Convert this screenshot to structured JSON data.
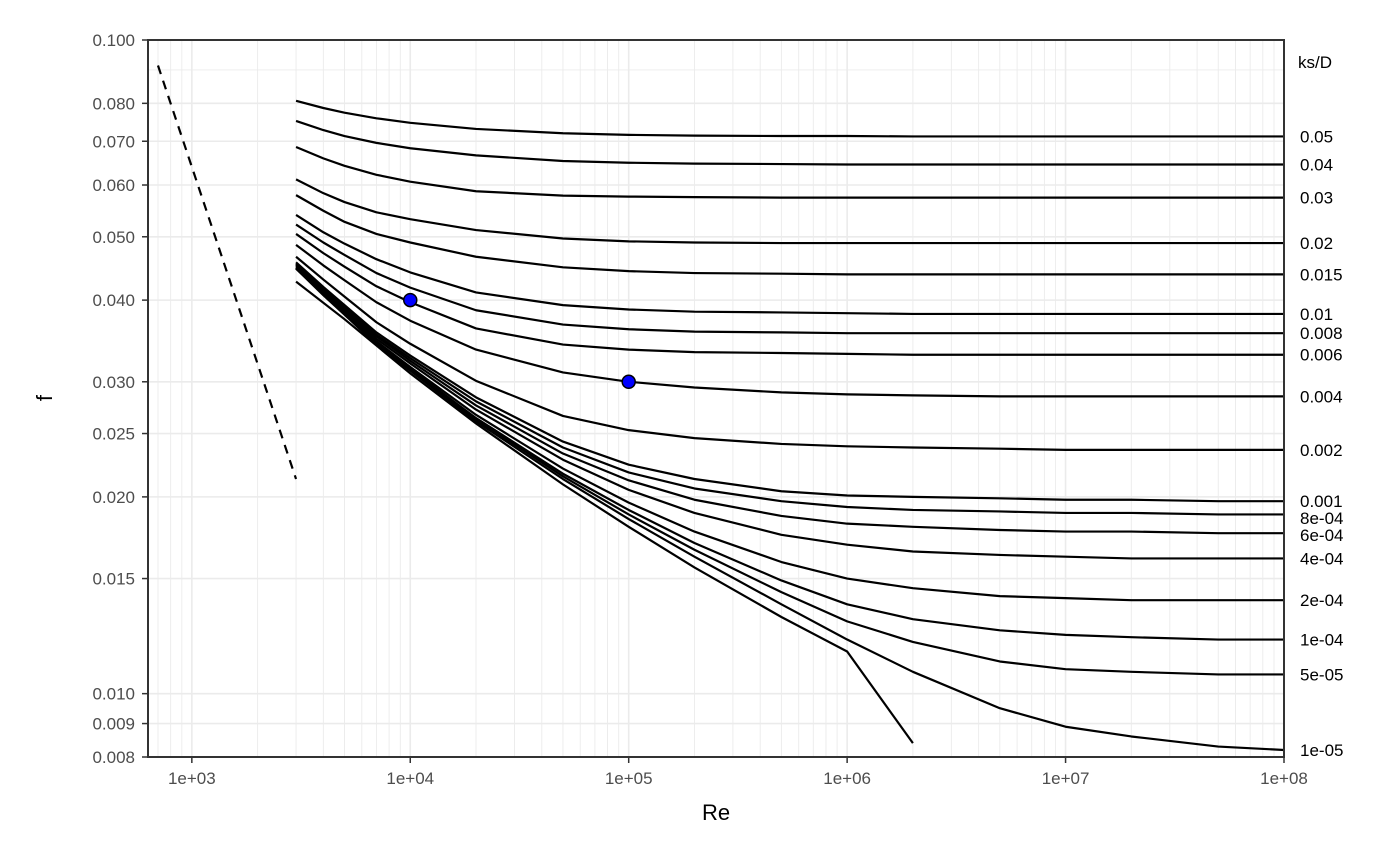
{
  "chart_data": {
    "type": "line",
    "title": "",
    "xlabel": "Re",
    "ylabel": "f",
    "x_scale": "log",
    "y_scale": "log",
    "xlim": [
      630,
      100000000
    ],
    "ylim": [
      0.008,
      0.1
    ],
    "grid": true,
    "x_ticks": [
      {
        "value": 1000,
        "label": "1e+03"
      },
      {
        "value": 10000,
        "label": "1e+04"
      },
      {
        "value": 100000,
        "label": "1e+05"
      },
      {
        "value": 1000000,
        "label": "1e+06"
      },
      {
        "value": 10000000,
        "label": "1e+07"
      },
      {
        "value": 100000000,
        "label": "1e+08"
      }
    ],
    "y_ticks": [
      {
        "value": 0.008,
        "label": "0.008"
      },
      {
        "value": 0.009,
        "label": "0.009"
      },
      {
        "value": 0.01,
        "label": "0.010"
      },
      {
        "value": 0.015,
        "label": "0.015"
      },
      {
        "value": 0.02,
        "label": "0.020"
      },
      {
        "value": 0.025,
        "label": "0.025"
      },
      {
        "value": 0.03,
        "label": "0.030"
      },
      {
        "value": 0.04,
        "label": "0.040"
      },
      {
        "value": 0.05,
        "label": "0.050"
      },
      {
        "value": 0.06,
        "label": "0.060"
      },
      {
        "value": 0.07,
        "label": "0.070"
      },
      {
        "value": 0.08,
        "label": "0.080"
      },
      {
        "value": 0.1,
        "label": "0.100"
      }
    ],
    "laminar": {
      "style": "dashed",
      "x": [
        700,
        3000
      ],
      "y": [
        0.0914,
        0.0213
      ]
    },
    "curves_label_title": "ks/D",
    "curves_x": [
      3000,
      4000,
      5000,
      7000,
      10000,
      20000,
      50000,
      100000,
      200000,
      500000,
      1000000,
      2000000,
      5000000,
      10000000,
      20000000,
      50000000,
      100000000
    ],
    "curves": [
      {
        "label": "0.05",
        "y": [
          0.0807,
          0.0787,
          0.0774,
          0.0759,
          0.0747,
          0.0731,
          0.072,
          0.0716,
          0.0714,
          0.0713,
          0.0713,
          0.0712,
          0.0712,
          0.0712,
          0.0712,
          0.0712,
          0.0712
        ]
      },
      {
        "label": "0.04",
        "y": [
          0.0752,
          0.0728,
          0.0713,
          0.0696,
          0.0683,
          0.0666,
          0.0653,
          0.0649,
          0.0647,
          0.0646,
          0.0645,
          0.0645,
          0.0645,
          0.0645,
          0.0645,
          0.0645,
          0.0645
        ]
      },
      {
        "label": "0.03",
        "y": [
          0.0686,
          0.0659,
          0.0642,
          0.0622,
          0.0607,
          0.0587,
          0.0578,
          0.0576,
          0.0575,
          0.0574,
          0.0574,
          0.0574,
          0.0574,
          0.0574,
          0.0574,
          0.0574,
          0.0574
        ]
      },
      {
        "label": "0.02",
        "y": [
          0.0612,
          0.0583,
          0.0565,
          0.0545,
          0.0532,
          0.0512,
          0.0497,
          0.0492,
          0.049,
          0.0489,
          0.0489,
          0.0489,
          0.0489,
          0.0489,
          0.0489,
          0.0489,
          0.0489
        ]
      },
      {
        "label": "0.015",
        "y": [
          0.0579,
          0.0548,
          0.0527,
          0.0505,
          0.049,
          0.0466,
          0.0449,
          0.0443,
          0.044,
          0.0439,
          0.0438,
          0.0438,
          0.0438,
          0.0438,
          0.0438,
          0.0438,
          0.0438
        ]
      },
      {
        "label": "0.01",
        "y": [
          0.054,
          0.0508,
          0.0488,
          0.0462,
          0.0441,
          0.0411,
          0.0393,
          0.0387,
          0.0384,
          0.0383,
          0.0382,
          0.0381,
          0.0381,
          0.0381,
          0.0381,
          0.0381,
          0.0381
        ]
      },
      {
        "label": "0.008",
        "y": [
          0.0522,
          0.049,
          0.0469,
          0.044,
          0.0418,
          0.0386,
          0.0367,
          0.0361,
          0.0358,
          0.0357,
          0.0356,
          0.0356,
          0.0356,
          0.0356,
          0.0356,
          0.0356,
          0.0356
        ]
      },
      {
        "label": "0.006",
        "y": [
          0.0505,
          0.0472,
          0.045,
          0.042,
          0.0397,
          0.0362,
          0.0342,
          0.0336,
          0.0333,
          0.0332,
          0.0331,
          0.033,
          0.033,
          0.033,
          0.033,
          0.033,
          0.033
        ]
      },
      {
        "label": "0.004",
        "y": [
          0.0486,
          0.0452,
          0.0429,
          0.0397,
          0.0372,
          0.0336,
          0.031,
          0.03,
          0.0294,
          0.0289,
          0.0287,
          0.0286,
          0.0285,
          0.0285,
          0.0285,
          0.0285,
          0.0285
        ]
      },
      {
        "label": "0.002",
        "y": [
          0.0466,
          0.043,
          0.0405,
          0.037,
          0.0343,
          0.0301,
          0.0266,
          0.0253,
          0.0246,
          0.0241,
          0.0239,
          0.0238,
          0.0237,
          0.0236,
          0.0236,
          0.0236,
          0.0236
        ]
      },
      {
        "label": "0.001",
        "y": [
          0.0457,
          0.0419,
          0.0393,
          0.0357,
          0.0329,
          0.0284,
          0.0243,
          0.0224,
          0.0213,
          0.0204,
          0.0201,
          0.02,
          0.0199,
          0.0198,
          0.0198,
          0.0197,
          0.0197
        ]
      },
      {
        "label": "8e-04",
        "y": [
          0.0455,
          0.0417,
          0.0391,
          0.0354,
          0.0326,
          0.028,
          0.0238,
          0.0218,
          0.0206,
          0.0197,
          0.0193,
          0.0191,
          0.019,
          0.0189,
          0.0189,
          0.0188,
          0.0188
        ]
      },
      {
        "label": "6e-04",
        "y": [
          0.0453,
          0.0415,
          0.0389,
          0.0352,
          0.0323,
          0.0276,
          0.0233,
          0.0212,
          0.0198,
          0.0187,
          0.0182,
          0.018,
          0.0178,
          0.0177,
          0.0177,
          0.0176,
          0.0176
        ]
      },
      {
        "label": "4e-04",
        "y": [
          0.0451,
          0.0413,
          0.0386,
          0.0349,
          0.032,
          0.0272,
          0.0228,
          0.0205,
          0.0189,
          0.0175,
          0.0169,
          0.0165,
          0.0163,
          0.0162,
          0.0161,
          0.0161,
          0.0161
        ]
      },
      {
        "label": "2e-04",
        "y": [
          0.0449,
          0.041,
          0.0383,
          0.0346,
          0.0316,
          0.0267,
          0.0221,
          0.0196,
          0.0177,
          0.0159,
          0.015,
          0.0145,
          0.0141,
          0.014,
          0.0139,
          0.0139,
          0.0139
        ]
      },
      {
        "label": "1e-04",
        "y": [
          0.0448,
          0.0409,
          0.0382,
          0.0344,
          0.0314,
          0.0264,
          0.0217,
          0.0191,
          0.017,
          0.0149,
          0.0137,
          0.013,
          0.0125,
          0.0123,
          0.0122,
          0.0121,
          0.0121
        ]
      },
      {
        "label": "5e-05",
        "y": [
          0.0447,
          0.0408,
          0.0381,
          0.0343,
          0.0313,
          0.0263,
          0.0215,
          0.0188,
          0.0166,
          0.0143,
          0.0129,
          0.012,
          0.0112,
          0.0109,
          0.0108,
          0.0107,
          0.0107
        ]
      },
      {
        "label": "1e-05",
        "y": [
          0.0447,
          0.0407,
          0.038,
          0.0342,
          0.0312,
          0.0261,
          0.0213,
          0.0185,
          0.0162,
          0.0137,
          0.0121,
          0.0108,
          0.0095,
          0.0089,
          0.0086,
          0.0083,
          0.0082
        ]
      }
    ],
    "smooth_curve": {
      "style": "solid",
      "x": [
        3000,
        5000,
        10000,
        20000,
        50000,
        100000,
        200000,
        500000,
        1000000,
        2000000
      ],
      "y": [
        0.0427,
        0.0374,
        0.0309,
        0.0259,
        0.0209,
        0.018,
        0.0156,
        0.0131,
        0.0116,
        0.0084
      ]
    },
    "points": [
      {
        "x": 10000,
        "y": 0.04,
        "color": "#0000ff"
      },
      {
        "x": 100000,
        "y": 0.03,
        "color": "#0000ff"
      }
    ],
    "colors": {
      "line": "#000000",
      "point_fill": "#0000ff",
      "grid": "#ebebeb",
      "axis": "#333333"
    }
  }
}
